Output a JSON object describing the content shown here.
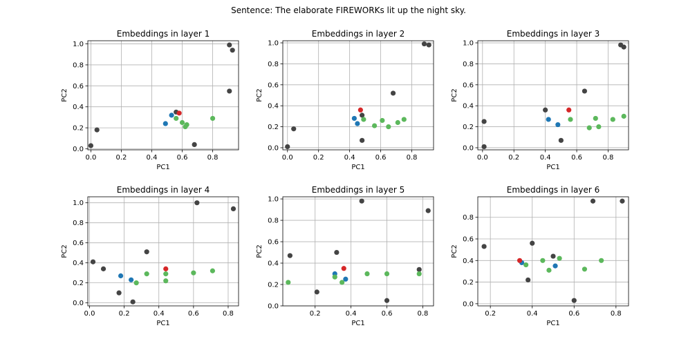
{
  "figure": {
    "suptitle": "Sentence: The elaborate FIREWORKs lit up the night sky."
  },
  "colors": {
    "gray": "#444444",
    "blue": "#1f77b4",
    "green": "#5cb85c",
    "red": "#d62728"
  },
  "chart_data": [
    {
      "type": "scatter",
      "title": "Embeddings in layer 1",
      "xlabel": "PC1",
      "ylabel": "PC2",
      "xlim": [
        -0.02,
        0.97
      ],
      "ylim": [
        -0.01,
        1.03
      ],
      "xticks": [
        0.0,
        0.2,
        0.4,
        0.6,
        0.8
      ],
      "yticks": [
        0.0,
        0.2,
        0.4,
        0.6,
        0.8,
        1.0
      ],
      "grid": true,
      "points": [
        {
          "x": 0.0,
          "y": 0.03,
          "color": "gray"
        },
        {
          "x": 0.04,
          "y": 0.18,
          "color": "gray"
        },
        {
          "x": 0.91,
          "y": 0.99,
          "color": "gray"
        },
        {
          "x": 0.93,
          "y": 0.94,
          "color": "gray"
        },
        {
          "x": 0.91,
          "y": 0.55,
          "color": "gray"
        },
        {
          "x": 0.68,
          "y": 0.04,
          "color": "gray"
        },
        {
          "x": 0.56,
          "y": 0.35,
          "color": "gray"
        },
        {
          "x": 0.53,
          "y": 0.32,
          "color": "blue"
        },
        {
          "x": 0.49,
          "y": 0.24,
          "color": "blue"
        },
        {
          "x": 0.58,
          "y": 0.34,
          "color": "red"
        },
        {
          "x": 0.56,
          "y": 0.29,
          "color": "green"
        },
        {
          "x": 0.6,
          "y": 0.25,
          "color": "green"
        },
        {
          "x": 0.62,
          "y": 0.21,
          "color": "green"
        },
        {
          "x": 0.63,
          "y": 0.23,
          "color": "green"
        },
        {
          "x": 0.8,
          "y": 0.29,
          "color": "green"
        }
      ]
    },
    {
      "type": "scatter",
      "title": "Embeddings in layer 2",
      "xlabel": "PC1",
      "ylabel": "PC2",
      "xlim": [
        -0.03,
        0.94
      ],
      "ylim": [
        -0.02,
        1.02
      ],
      "xticks": [
        0.0,
        0.2,
        0.4,
        0.6,
        0.8
      ],
      "yticks": [
        0.0,
        0.2,
        0.4,
        0.6,
        0.8,
        1.0
      ],
      "grid": true,
      "points": [
        {
          "x": 0.0,
          "y": 0.01,
          "color": "gray"
        },
        {
          "x": 0.04,
          "y": 0.18,
          "color": "gray"
        },
        {
          "x": 0.88,
          "y": 0.99,
          "color": "gray"
        },
        {
          "x": 0.91,
          "y": 0.98,
          "color": "gray"
        },
        {
          "x": 0.68,
          "y": 0.52,
          "color": "gray"
        },
        {
          "x": 0.48,
          "y": 0.31,
          "color": "gray"
        },
        {
          "x": 0.48,
          "y": 0.07,
          "color": "gray"
        },
        {
          "x": 0.43,
          "y": 0.28,
          "color": "blue"
        },
        {
          "x": 0.45,
          "y": 0.23,
          "color": "blue"
        },
        {
          "x": 0.47,
          "y": 0.36,
          "color": "red"
        },
        {
          "x": 0.49,
          "y": 0.27,
          "color": "green"
        },
        {
          "x": 0.56,
          "y": 0.21,
          "color": "green"
        },
        {
          "x": 0.61,
          "y": 0.26,
          "color": "green"
        },
        {
          "x": 0.65,
          "y": 0.2,
          "color": "green"
        },
        {
          "x": 0.71,
          "y": 0.24,
          "color": "green"
        },
        {
          "x": 0.75,
          "y": 0.27,
          "color": "green"
        }
      ]
    },
    {
      "type": "scatter",
      "title": "Embeddings in layer 3",
      "xlabel": "PC1",
      "ylabel": "PC2",
      "xlim": [
        -0.03,
        0.93
      ],
      "ylim": [
        -0.02,
        1.02
      ],
      "xticks": [
        0.0,
        0.2,
        0.4,
        0.6,
        0.8
      ],
      "yticks": [
        0.0,
        0.2,
        0.4,
        0.6,
        0.8,
        1.0
      ],
      "grid": true,
      "points": [
        {
          "x": 0.01,
          "y": 0.01,
          "color": "gray"
        },
        {
          "x": 0.01,
          "y": 0.25,
          "color": "gray"
        },
        {
          "x": 0.88,
          "y": 0.98,
          "color": "gray"
        },
        {
          "x": 0.9,
          "y": 0.96,
          "color": "gray"
        },
        {
          "x": 0.65,
          "y": 0.54,
          "color": "gray"
        },
        {
          "x": 0.4,
          "y": 0.36,
          "color": "gray"
        },
        {
          "x": 0.5,
          "y": 0.07,
          "color": "gray"
        },
        {
          "x": 0.42,
          "y": 0.27,
          "color": "blue"
        },
        {
          "x": 0.48,
          "y": 0.22,
          "color": "blue"
        },
        {
          "x": 0.55,
          "y": 0.36,
          "color": "red"
        },
        {
          "x": 0.56,
          "y": 0.27,
          "color": "green"
        },
        {
          "x": 0.68,
          "y": 0.19,
          "color": "green"
        },
        {
          "x": 0.72,
          "y": 0.28,
          "color": "green"
        },
        {
          "x": 0.74,
          "y": 0.2,
          "color": "green"
        },
        {
          "x": 0.83,
          "y": 0.27,
          "color": "green"
        },
        {
          "x": 0.9,
          "y": 0.3,
          "color": "green"
        }
      ]
    },
    {
      "type": "scatter",
      "title": "Embeddings in layer 4",
      "xlabel": "PC1",
      "ylabel": "PC2",
      "xlim": [
        -0.01,
        0.86
      ],
      "ylim": [
        -0.03,
        1.06
      ],
      "xticks": [
        0.0,
        0.2,
        0.4,
        0.6,
        0.8
      ],
      "yticks": [
        0.0,
        0.2,
        0.4,
        0.6,
        0.8,
        1.0
      ],
      "grid": true,
      "points": [
        {
          "x": 0.02,
          "y": 0.41,
          "color": "gray"
        },
        {
          "x": 0.08,
          "y": 0.34,
          "color": "gray"
        },
        {
          "x": 0.17,
          "y": 0.1,
          "color": "gray"
        },
        {
          "x": 0.25,
          "y": 0.01,
          "color": "gray"
        },
        {
          "x": 0.33,
          "y": 0.51,
          "color": "gray"
        },
        {
          "x": 0.62,
          "y": 1.0,
          "color": "gray"
        },
        {
          "x": 0.83,
          "y": 0.94,
          "color": "gray"
        },
        {
          "x": 0.18,
          "y": 0.27,
          "color": "blue"
        },
        {
          "x": 0.24,
          "y": 0.23,
          "color": "blue"
        },
        {
          "x": 0.44,
          "y": 0.34,
          "color": "red"
        },
        {
          "x": 0.27,
          "y": 0.2,
          "color": "green"
        },
        {
          "x": 0.33,
          "y": 0.29,
          "color": "green"
        },
        {
          "x": 0.44,
          "y": 0.29,
          "color": "green"
        },
        {
          "x": 0.44,
          "y": 0.22,
          "color": "green"
        },
        {
          "x": 0.6,
          "y": 0.3,
          "color": "green"
        },
        {
          "x": 0.71,
          "y": 0.32,
          "color": "green"
        }
      ]
    },
    {
      "type": "scatter",
      "title": "Embeddings in layer 5",
      "xlabel": "PC1",
      "ylabel": "PC2",
      "xlim": [
        0.02,
        0.86
      ],
      "ylim": [
        0.0,
        1.02
      ],
      "xticks": [
        0.2,
        0.4,
        0.6,
        0.8
      ],
      "yticks": [
        0.0,
        0.2,
        0.4,
        0.6,
        0.8,
        1.0
      ],
      "grid": true,
      "points": [
        {
          "x": 0.06,
          "y": 0.47,
          "color": "gray"
        },
        {
          "x": 0.21,
          "y": 0.13,
          "color": "gray"
        },
        {
          "x": 0.32,
          "y": 0.5,
          "color": "gray"
        },
        {
          "x": 0.46,
          "y": 0.98,
          "color": "gray"
        },
        {
          "x": 0.6,
          "y": 0.05,
          "color": "gray"
        },
        {
          "x": 0.78,
          "y": 0.34,
          "color": "gray"
        },
        {
          "x": 0.83,
          "y": 0.89,
          "color": "gray"
        },
        {
          "x": 0.31,
          "y": 0.3,
          "color": "blue"
        },
        {
          "x": 0.37,
          "y": 0.25,
          "color": "blue"
        },
        {
          "x": 0.36,
          "y": 0.35,
          "color": "red"
        },
        {
          "x": 0.05,
          "y": 0.22,
          "color": "green"
        },
        {
          "x": 0.31,
          "y": 0.27,
          "color": "green"
        },
        {
          "x": 0.35,
          "y": 0.22,
          "color": "green"
        },
        {
          "x": 0.49,
          "y": 0.3,
          "color": "green"
        },
        {
          "x": 0.6,
          "y": 0.3,
          "color": "green"
        },
        {
          "x": 0.78,
          "y": 0.3,
          "color": "green"
        }
      ]
    },
    {
      "type": "scatter",
      "title": "Embeddings in layer 6",
      "xlabel": "PC1",
      "ylabel": "PC2",
      "xlim": [
        0.14,
        0.86
      ],
      "ylim": [
        -0.02,
        0.99
      ],
      "xticks": [
        0.2,
        0.4,
        0.6,
        0.8
      ],
      "yticks": [
        0.0,
        0.2,
        0.4,
        0.6,
        0.8
      ],
      "grid": true,
      "points": [
        {
          "x": 0.17,
          "y": 0.53,
          "color": "gray"
        },
        {
          "x": 0.38,
          "y": 0.22,
          "color": "gray"
        },
        {
          "x": 0.4,
          "y": 0.56,
          "color": "gray"
        },
        {
          "x": 0.5,
          "y": 0.44,
          "color": "gray"
        },
        {
          "x": 0.6,
          "y": 0.03,
          "color": "gray"
        },
        {
          "x": 0.69,
          "y": 0.95,
          "color": "gray"
        },
        {
          "x": 0.83,
          "y": 0.95,
          "color": "gray"
        },
        {
          "x": 0.35,
          "y": 0.38,
          "color": "blue"
        },
        {
          "x": 0.51,
          "y": 0.35,
          "color": "blue"
        },
        {
          "x": 0.34,
          "y": 0.4,
          "color": "red"
        },
        {
          "x": 0.37,
          "y": 0.36,
          "color": "green"
        },
        {
          "x": 0.45,
          "y": 0.4,
          "color": "green"
        },
        {
          "x": 0.48,
          "y": 0.31,
          "color": "green"
        },
        {
          "x": 0.53,
          "y": 0.42,
          "color": "green"
        },
        {
          "x": 0.65,
          "y": 0.32,
          "color": "green"
        },
        {
          "x": 0.73,
          "y": 0.4,
          "color": "green"
        }
      ]
    }
  ]
}
